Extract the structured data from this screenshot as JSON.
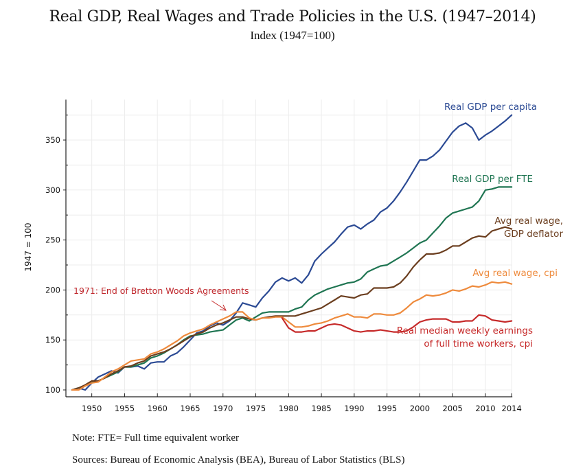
{
  "chart_data": {
    "type": "line",
    "title": "Real GDP, Real Wages and Trade Policies in the U.S. (1947–2014)",
    "subtitle": "Index (1947=100)",
    "xlabel": "",
    "ylabel": "1947 = 100",
    "xlim": [
      1947,
      2014
    ],
    "ylim": [
      95,
      378
    ],
    "grid": true,
    "x_ticks": [
      1950,
      1955,
      1960,
      1965,
      1970,
      1975,
      1980,
      1985,
      1990,
      1995,
      2000,
      2005,
      2010,
      2014
    ],
    "y_ticks": [
      100,
      150,
      200,
      250,
      300,
      350
    ],
    "y_minor_ticks": [
      125,
      175,
      225,
      275,
      325,
      375
    ],
    "series": [
      {
        "name": "Real GDP per capita",
        "label_lines": [
          "Real GDP per capita"
        ],
        "color": "#2b4a94",
        "x": [
          1947,
          1948,
          1949,
          1950,
          1951,
          1952,
          1953,
          1954,
          1955,
          1956,
          1957,
          1958,
          1959,
          1960,
          1961,
          1962,
          1963,
          1964,
          1965,
          1966,
          1967,
          1968,
          1969,
          1970,
          1971,
          1972,
          1973,
          1974,
          1975,
          1976,
          1977,
          1978,
          1979,
          1980,
          1981,
          1982,
          1983,
          1984,
          1985,
          1986,
          1987,
          1988,
          1989,
          1990,
          1991,
          1992,
          1993,
          1994,
          1995,
          1996,
          1997,
          1998,
          1999,
          2000,
          2001,
          2002,
          2003,
          2004,
          2005,
          2006,
          2007,
          2008,
          2009,
          2010,
          2011,
          2012,
          2013,
          2014
        ],
        "values": [
          100,
          102,
          100,
          107,
          113,
          116,
          119,
          117,
          123,
          123,
          124,
          121,
          127,
          128,
          128,
          134,
          137,
          143,
          150,
          157,
          159,
          164,
          167,
          165,
          169,
          177,
          187,
          185,
          183,
          192,
          199,
          208,
          212,
          209,
          212,
          207,
          215,
          229,
          236,
          242,
          248,
          256,
          263,
          265,
          261,
          266,
          270,
          278,
          282,
          289,
          298,
          308,
          319,
          330,
          330,
          334,
          340,
          349,
          358,
          364,
          367,
          362,
          350,
          355,
          359,
          364,
          369,
          375
        ]
      },
      {
        "name": "Real GDP per FTE",
        "label_lines": [
          "Real GDP per FTE"
        ],
        "color": "#1f7552",
        "x": [
          1947,
          1948,
          1949,
          1950,
          1951,
          1952,
          1953,
          1954,
          1955,
          1956,
          1957,
          1958,
          1959,
          1960,
          1961,
          1962,
          1963,
          1964,
          1965,
          1966,
          1967,
          1968,
          1969,
          1970,
          1971,
          1972,
          1973,
          1974,
          1975,
          1976,
          1977,
          1978,
          1979,
          1980,
          1981,
          1982,
          1983,
          1984,
          1985,
          1986,
          1987,
          1988,
          1989,
          1990,
          1991,
          1992,
          1993,
          1994,
          1995,
          1996,
          1997,
          1998,
          1999,
          2000,
          2001,
          2002,
          2003,
          2004,
          2005,
          2006,
          2007,
          2008,
          2009,
          2010,
          2011,
          2012,
          2013,
          2014
        ],
        "values": [
          100,
          102,
          104,
          108,
          109,
          112,
          115,
          118,
          123,
          123,
          125,
          127,
          132,
          134,
          137,
          141,
          145,
          150,
          154,
          155,
          156,
          158,
          159,
          160,
          165,
          170,
          172,
          169,
          173,
          177,
          178,
          178,
          178,
          178,
          181,
          183,
          190,
          195,
          198,
          201,
          203,
          205,
          207,
          208,
          211,
          218,
          221,
          224,
          225,
          229,
          233,
          237,
          242,
          247,
          250,
          257,
          264,
          272,
          277,
          279,
          281,
          283,
          289,
          300,
          301,
          303,
          303,
          303
        ]
      },
      {
        "name": "Avg real wage, GDP deflator",
        "label_lines": [
          "Avg real wage,",
          "GDP deflator"
        ],
        "color": "#6b3e1f",
        "x": [
          1947,
          1948,
          1949,
          1950,
          1951,
          1952,
          1953,
          1954,
          1955,
          1956,
          1957,
          1958,
          1959,
          1960,
          1961,
          1962,
          1963,
          1964,
          1965,
          1966,
          1967,
          1968,
          1969,
          1970,
          1971,
          1972,
          1973,
          1974,
          1975,
          1976,
          1977,
          1978,
          1979,
          1980,
          1981,
          1982,
          1983,
          1984,
          1985,
          1986,
          1987,
          1988,
          1989,
          1990,
          1991,
          1992,
          1993,
          1994,
          1995,
          1996,
          1997,
          1998,
          1999,
          2000,
          2001,
          2002,
          2003,
          2004,
          2005,
          2006,
          2007,
          2008,
          2009,
          2010,
          2011,
          2012,
          2013,
          2014
        ],
        "values": [
          100,
          102,
          105,
          109,
          109,
          112,
          116,
          119,
          123,
          124,
          127,
          129,
          134,
          136,
          138,
          141,
          145,
          149,
          153,
          156,
          158,
          162,
          165,
          167,
          170,
          173,
          173,
          171,
          170,
          172,
          173,
          174,
          174,
          174,
          174,
          176,
          178,
          180,
          182,
          186,
          190,
          194,
          193,
          192,
          195,
          196,
          202,
          202,
          202,
          203,
          207,
          214,
          223,
          230,
          236,
          236,
          237,
          240,
          244,
          244,
          248,
          252,
          254,
          253,
          259,
          261,
          263,
          261
        ]
      },
      {
        "name": "Avg real wage, cpi",
        "label_lines": [
          "Avg real wage, cpi"
        ],
        "color": "#ee8a3c",
        "x": [
          1947,
          1948,
          1949,
          1950,
          1951,
          1952,
          1953,
          1954,
          1955,
          1956,
          1957,
          1958,
          1959,
          1960,
          1961,
          1962,
          1963,
          1964,
          1965,
          1966,
          1967,
          1968,
          1969,
          1970,
          1971,
          1972,
          1973,
          1974,
          1975,
          1976,
          1977,
          1978,
          1979,
          1980,
          1981,
          1982,
          1983,
          1984,
          1985,
          1986,
          1987,
          1988,
          1989,
          1990,
          1991,
          1992,
          1993,
          1994,
          1995,
          1996,
          1997,
          1998,
          1999,
          2000,
          2001,
          2002,
          2003,
          2004,
          2005,
          2006,
          2007,
          2008,
          2009,
          2010,
          2011,
          2012,
          2013,
          2014
        ],
        "values": [
          100,
          100,
          104,
          107,
          108,
          113,
          118,
          121,
          125,
          129,
          130,
          131,
          136,
          138,
          141,
          145,
          149,
          154,
          157,
          159,
          161,
          165,
          168,
          171,
          174,
          178,
          178,
          172,
          170,
          172,
          172,
          173,
          173,
          168,
          163,
          163,
          164,
          166,
          167,
          169,
          172,
          174,
          176,
          173,
          173,
          172,
          176,
          176,
          175,
          175,
          177,
          182,
          188,
          191,
          195,
          194,
          195,
          197,
          200,
          199,
          201,
          204,
          203,
          205,
          208,
          207,
          208,
          206
        ]
      },
      {
        "name": "Real median weekly earnings of full time workers, cpi",
        "label_lines": [
          "Real median weekly earnings",
          "of full time workers, cpi"
        ],
        "color": "#c62a2a",
        "x": [
          1979,
          1980,
          1981,
          1982,
          1983,
          1984,
          1985,
          1986,
          1987,
          1988,
          1989,
          1990,
          1991,
          1992,
          1993,
          1994,
          1995,
          1996,
          1997,
          1998,
          1999,
          2000,
          2001,
          2002,
          2003,
          2004,
          2005,
          2006,
          2007,
          2008,
          2009,
          2010,
          2011,
          2012,
          2013,
          2014
        ],
        "values": [
          172,
          162,
          158,
          158,
          159,
          159,
          162,
          165,
          166,
          165,
          162,
          159,
          158,
          159,
          159,
          160,
          159,
          158,
          158,
          159,
          163,
          168,
          170,
          171,
          171,
          171,
          168,
          168,
          169,
          169,
          175,
          174,
          170,
          169,
          168,
          169
        ]
      }
    ],
    "annotations": [
      {
        "text": "1971: End of Bretton Woods Agreements",
        "x": 1971,
        "y": 178,
        "arrow": true,
        "color": "#c62a2a"
      }
    ]
  },
  "footer": {
    "note": "Note: FTE= Full time equivalent worker",
    "sources": "Sources:  Bureau of Economic Analysis (BEA), Bureau of Labor Statistics (BLS)"
  }
}
